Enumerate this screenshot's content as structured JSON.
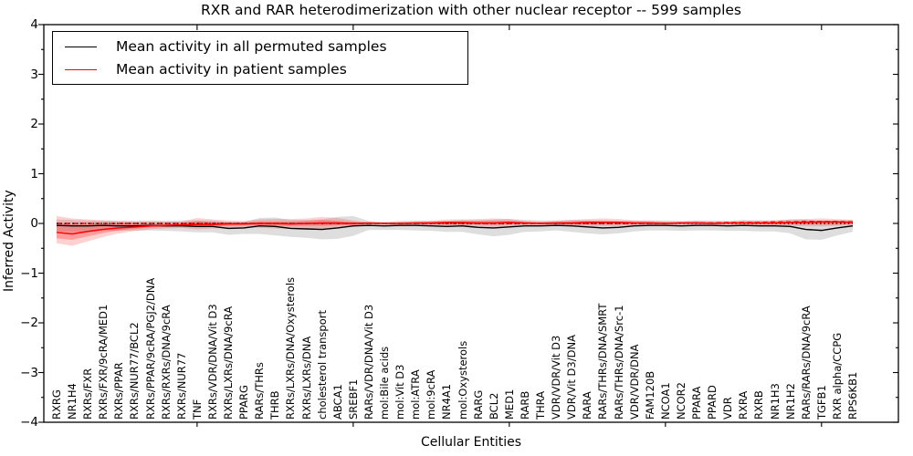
{
  "title": "RXR and RAR heterodimerization with other nuclear receptor -- 599 samples",
  "legend": {
    "items": [
      {
        "label": "Mean activity in all permuted samples",
        "color": "#000000"
      },
      {
        "label": "Mean activity in patient samples",
        "color": "#ff0000"
      }
    ]
  },
  "chart_data": {
    "type": "line",
    "title": "RXR and RAR heterodimerization with other nuclear receptor -- 599 samples",
    "xlabel": "Cellular Entities",
    "ylabel": "Inferred Activity",
    "ylim": [
      -4,
      4
    ],
    "yticks": [
      4,
      3,
      2,
      1,
      0,
      -1,
      -2,
      -3,
      -4
    ],
    "grid": false,
    "legend_position": "upper left",
    "categories": [
      "RXRG",
      "NR1H4",
      "RXRs/FXR",
      "RXRs/FXR/9cRA/MED1",
      "RXRs/PPAR",
      "RXRs/NUR77/BCL2",
      "RXRs/PPAR/9cRA/PGJ2/DNA",
      "RXRs/RXRs/DNA/9cRA",
      "RXRs/NUR77",
      "TNF",
      "RXRs/VDR/DNA/Vit D3",
      "RXRs/LXRs/DNA/9cRA",
      "PPARG",
      "RARs/THRs",
      "THRB",
      "RXRs/LXRs/DNA/Oxysterols",
      "RXRs/LXRs/DNA",
      "cholesterol transport",
      "ABCA1",
      "SREBF1",
      "RARs/VDR/DNA/Vit D3",
      "mol:Bile acids",
      "mol:Vit D3",
      "mol:ATRA",
      "mol:9cRA",
      "NR4A1",
      "mol:Oxysterols",
      "RARG",
      "BCL2",
      "MED1",
      "RARB",
      "THRA",
      "VDR/VDR/Vit D3",
      "VDR/Vit D3/DNA",
      "RARA",
      "RARs/THRs/DNA/SMRT",
      "RARs/THRs/DNA/Src-1",
      "VDR/VDR/DNA",
      "FAM120B",
      "NCOA1",
      "NCOR2",
      "PPARA",
      "PPARD",
      "VDR",
      "RXRA",
      "RXRB",
      "NR1H3",
      "NR1H2",
      "RARs/RARs/DNA/9cRA",
      "TGFB1",
      "RXR alpha/CCPG",
      "RPS6KB1"
    ],
    "series": [
      {
        "name": "Permuted samples band",
        "type": "band",
        "color": "#000000",
        "opacity": 0.13,
        "upper": [
          0.08,
          0.07,
          0.06,
          0.06,
          0.05,
          0.05,
          0.06,
          0.05,
          0.06,
          0.06,
          0.06,
          0.03,
          0.03,
          0.11,
          0.12,
          0.07,
          0.07,
          0.08,
          0.13,
          0.15,
          0.05,
          0.03,
          0.05,
          0.06,
          0.05,
          0.05,
          0.07,
          0.06,
          0.08,
          0.09,
          0.07,
          0.06,
          0.06,
          0.07,
          0.06,
          0.04,
          0.04,
          0.06,
          0.06,
          0.06,
          0.05,
          0.06,
          0.06,
          0.05,
          0.07,
          0.06,
          0.06,
          0.08,
          0.08,
          0.05,
          0.06,
          0.07
        ],
        "lower": [
          -0.16,
          -0.17,
          -0.16,
          -0.14,
          -0.15,
          -0.15,
          -0.14,
          -0.15,
          -0.16,
          -0.18,
          -0.18,
          -0.23,
          -0.21,
          -0.21,
          -0.24,
          -0.27,
          -0.29,
          -0.32,
          -0.31,
          -0.25,
          -0.13,
          -0.13,
          -0.13,
          -0.14,
          -0.15,
          -0.17,
          -0.17,
          -0.22,
          -0.26,
          -0.23,
          -0.17,
          -0.16,
          -0.14,
          -0.17,
          -0.2,
          -0.22,
          -0.2,
          -0.16,
          -0.14,
          -0.14,
          -0.15,
          -0.14,
          -0.14,
          -0.15,
          -0.15,
          -0.16,
          -0.16,
          -0.2,
          -0.32,
          -0.33,
          -0.24,
          -0.17
        ]
      },
      {
        "name": "Patient samples band (outer)",
        "type": "band",
        "color": "#ff0000",
        "opacity": 0.18,
        "upper": [
          0.15,
          0.1,
          0.08,
          0.06,
          0.05,
          0.04,
          0.04,
          0.04,
          0.04,
          0.11,
          0.08,
          0.06,
          0.05,
          0.08,
          0.09,
          0.09,
          0.1,
          0.13,
          0.11,
          0.06,
          0.02,
          0.02,
          0.03,
          0.04,
          0.05,
          0.08,
          0.08,
          0.09,
          0.1,
          0.09,
          0.05,
          0.04,
          0.05,
          0.07,
          0.09,
          0.1,
          0.09,
          0.06,
          0.05,
          0.04,
          0.04,
          0.05,
          0.04,
          0.04,
          0.05,
          0.06,
          0.06,
          0.08,
          0.09,
          0.1,
          0.09,
          0.07
        ],
        "lower": [
          -0.4,
          -0.45,
          -0.36,
          -0.27,
          -0.2,
          -0.15,
          -0.12,
          -0.1,
          -0.09,
          -0.12,
          -0.1,
          -0.09,
          -0.08,
          -0.09,
          -0.1,
          -0.11,
          -0.11,
          -0.12,
          -0.1,
          -0.07,
          -0.02,
          -0.02,
          -0.03,
          -0.03,
          -0.04,
          -0.05,
          -0.05,
          -0.06,
          -0.07,
          -0.06,
          -0.04,
          -0.03,
          -0.04,
          -0.05,
          -0.06,
          -0.06,
          -0.06,
          -0.04,
          -0.03,
          -0.03,
          -0.03,
          -0.03,
          -0.03,
          -0.03,
          -0.04,
          -0.04,
          -0.04,
          -0.05,
          -0.06,
          -0.06,
          -0.05,
          -0.04
        ]
      },
      {
        "name": "Patient samples band (inner)",
        "type": "band",
        "color": "#ff0000",
        "opacity": 0.25,
        "upper": [
          0.02,
          -0.02,
          -0.02,
          -0.01,
          0.0,
          0.0,
          0.0,
          0.01,
          0.01,
          0.05,
          0.03,
          0.02,
          0.02,
          0.04,
          0.04,
          0.04,
          0.05,
          0.07,
          0.05,
          0.03,
          0.01,
          0.01,
          0.01,
          0.02,
          0.03,
          0.04,
          0.04,
          0.05,
          0.05,
          0.05,
          0.03,
          0.02,
          0.03,
          0.04,
          0.05,
          0.06,
          0.05,
          0.03,
          0.03,
          0.02,
          0.02,
          0.03,
          0.02,
          0.02,
          0.03,
          0.03,
          0.03,
          0.04,
          0.05,
          0.06,
          0.05,
          0.04
        ],
        "lower": [
          -0.3,
          -0.33,
          -0.26,
          -0.19,
          -0.14,
          -0.11,
          -0.08,
          -0.07,
          -0.06,
          -0.07,
          -0.06,
          -0.05,
          -0.04,
          -0.04,
          -0.05,
          -0.05,
          -0.05,
          -0.05,
          -0.04,
          -0.03,
          -0.01,
          -0.01,
          -0.01,
          -0.01,
          -0.01,
          -0.02,
          -0.02,
          -0.02,
          -0.03,
          -0.02,
          -0.01,
          -0.01,
          -0.01,
          -0.02,
          -0.02,
          -0.02,
          -0.02,
          -0.01,
          -0.01,
          -0.01,
          -0.01,
          -0.01,
          -0.01,
          -0.01,
          -0.01,
          -0.02,
          -0.02,
          -0.02,
          -0.02,
          -0.02,
          -0.02,
          -0.01
        ]
      },
      {
        "name": "Patient median (dashed)",
        "type": "line",
        "style": "dashed",
        "color": "#ff0000",
        "width": 1.4,
        "values": [
          0,
          0,
          0,
          0,
          0,
          0,
          0,
          0,
          0,
          0,
          0,
          0,
          0,
          0,
          0,
          0,
          0,
          0,
          0,
          0,
          0,
          0,
          0,
          0,
          0,
          0,
          0,
          0,
          0,
          0,
          0,
          0,
          0,
          0,
          0,
          0,
          0,
          0,
          0,
          0,
          0.01,
          0.01,
          0.01,
          0.02,
          0.02,
          0.02,
          0.03,
          0.03,
          0.04,
          0.04,
          0.04,
          0.03
        ]
      },
      {
        "name": "Permuted median (dotted)",
        "type": "line",
        "style": "dotted",
        "color": "#000000",
        "width": 1.2,
        "values": [
          0,
          0,
          0,
          0,
          0,
          0,
          0,
          0,
          0,
          0,
          0,
          0,
          0,
          0,
          0,
          0,
          0,
          0,
          0,
          0,
          0,
          0,
          0,
          0,
          0,
          0,
          0,
          0,
          0,
          0,
          0,
          0,
          0,
          0,
          0,
          0,
          0,
          0,
          0,
          0,
          0,
          0,
          0,
          0,
          0,
          0,
          0,
          0,
          0,
          0,
          0,
          0
        ]
      },
      {
        "name": "Mean activity in all permuted samples",
        "type": "line",
        "style": "solid",
        "color": "#000000",
        "width": 1.4,
        "values": [
          -0.04,
          -0.05,
          -0.05,
          -0.04,
          -0.05,
          -0.05,
          -0.04,
          -0.05,
          -0.05,
          -0.06,
          -0.06,
          -0.1,
          -0.09,
          -0.05,
          -0.06,
          -0.1,
          -0.11,
          -0.12,
          -0.09,
          -0.05,
          -0.04,
          -0.05,
          -0.04,
          -0.04,
          -0.05,
          -0.06,
          -0.05,
          -0.08,
          -0.09,
          -0.07,
          -0.05,
          -0.05,
          -0.04,
          -0.05,
          -0.07,
          -0.09,
          -0.08,
          -0.05,
          -0.04,
          -0.04,
          -0.05,
          -0.04,
          -0.04,
          -0.05,
          -0.04,
          -0.05,
          -0.05,
          -0.06,
          -0.12,
          -0.14,
          -0.09,
          -0.05
        ]
      },
      {
        "name": "Mean activity in patient samples",
        "type": "line",
        "style": "solid",
        "color": "#ff0000",
        "width": 1.5,
        "values": [
          -0.18,
          -0.21,
          -0.16,
          -0.12,
          -0.09,
          -0.07,
          -0.05,
          -0.04,
          -0.03,
          -0.02,
          -0.02,
          -0.01,
          -0.01,
          0.0,
          0.0,
          -0.01,
          0.0,
          0.01,
          0.01,
          0.0,
          0.01,
          0.0,
          0.0,
          0.01,
          0.01,
          0.02,
          0.02,
          0.01,
          0.01,
          0.02,
          0.01,
          0.0,
          0.01,
          0.01,
          0.02,
          0.02,
          0.02,
          0.01,
          0.01,
          0.0,
          0.01,
          0.01,
          0.0,
          0.01,
          0.01,
          0.01,
          0.01,
          0.02,
          0.02,
          0.03,
          0.03,
          0.02
        ]
      }
    ]
  }
}
